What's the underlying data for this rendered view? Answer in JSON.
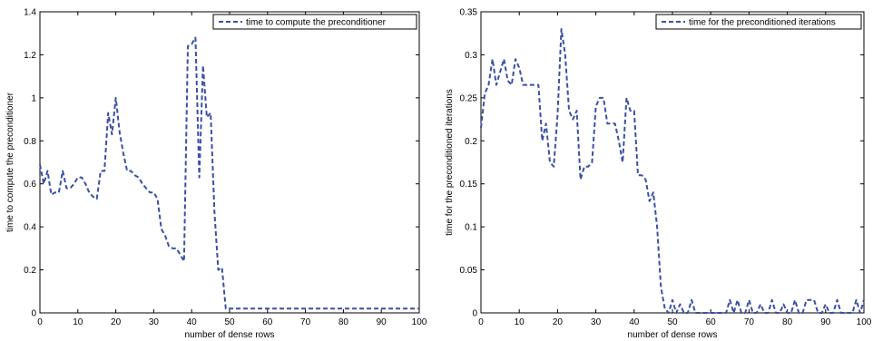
{
  "chart_data": [
    {
      "type": "line",
      "xlabel": "number of dense rows",
      "ylabel": "time to compute the preconditioner",
      "xlim": [
        0,
        100
      ],
      "ylim": [
        0,
        1.4
      ],
      "xticks": [
        "0",
        "10",
        "20",
        "30",
        "40",
        "50",
        "60",
        "70",
        "80",
        "90",
        "100"
      ],
      "yticks": [
        "0",
        "0.2",
        "0.4",
        "0.6",
        "0.8",
        "1",
        "1.2",
        "1.4"
      ],
      "grid": false,
      "legend_position": "top-right",
      "line_color": "#3a4fa6",
      "series": [
        {
          "name": "time to compute the preconditioner",
          "x": [
            0,
            1,
            2,
            3,
            4,
            5,
            6,
            7,
            8,
            9,
            10,
            11,
            12,
            13,
            14,
            15,
            16,
            17,
            18,
            19,
            20,
            21,
            22,
            23,
            24,
            25,
            26,
            27,
            28,
            29,
            30,
            31,
            32,
            33,
            34,
            35,
            36,
            37,
            38,
            39,
            40,
            41,
            42,
            43,
            44,
            45,
            46,
            47,
            48,
            49,
            50,
            51,
            52,
            53,
            54,
            55,
            56,
            57,
            58,
            59,
            60,
            61,
            62,
            63,
            64,
            65,
            66,
            67,
            68,
            69,
            70,
            71,
            72,
            73,
            74,
            75,
            76,
            77,
            78,
            79,
            80,
            81,
            82,
            83,
            84,
            85,
            86,
            87,
            88,
            89,
            90,
            91,
            92,
            93,
            94,
            95,
            96,
            97,
            98,
            99,
            100
          ],
          "values": [
            0.69,
            0.6,
            0.66,
            0.55,
            0.56,
            0.56,
            0.66,
            0.58,
            0.58,
            0.6,
            0.63,
            0.63,
            0.6,
            0.56,
            0.54,
            0.53,
            0.66,
            0.66,
            0.93,
            0.83,
            1.0,
            0.84,
            0.74,
            0.66,
            0.66,
            0.64,
            0.63,
            0.6,
            0.58,
            0.56,
            0.56,
            0.53,
            0.39,
            0.36,
            0.31,
            0.3,
            0.3,
            0.27,
            0.24,
            1.24,
            1.25,
            1.28,
            0.63,
            1.15,
            0.91,
            0.93,
            0.47,
            0.2,
            0.21,
            0.02,
            0.02,
            0.02,
            0.02,
            0.02,
            0.02,
            0.02,
            0.02,
            0.02,
            0.02,
            0.02,
            0.02,
            0.02,
            0.02,
            0.02,
            0.02,
            0.02,
            0.02,
            0.02,
            0.02,
            0.02,
            0.02,
            0.02,
            0.02,
            0.02,
            0.02,
            0.02,
            0.02,
            0.02,
            0.02,
            0.02,
            0.02,
            0.02,
            0.02,
            0.02,
            0.02,
            0.02,
            0.02,
            0.02,
            0.02,
            0.02,
            0.02,
            0.02,
            0.02,
            0.02,
            0.02,
            0.02,
            0.02,
            0.02,
            0.02,
            0.02,
            0.02
          ]
        }
      ]
    },
    {
      "type": "line",
      "xlabel": "number of dense rows",
      "ylabel": "time for the preconditioned iterations",
      "xlim": [
        0,
        100
      ],
      "ylim": [
        0,
        0.35
      ],
      "xticks": [
        "0",
        "10",
        "20",
        "30",
        "40",
        "50",
        "60",
        "70",
        "80",
        "90",
        "100"
      ],
      "yticks": [
        "0",
        "0.05",
        "0.1",
        "0.15",
        "0.2",
        "0.25",
        "0.3",
        "0.35"
      ],
      "grid": false,
      "legend_position": "top-right",
      "line_color": "#3a4fa6",
      "series": [
        {
          "name": "time for the preconditioned iterations",
          "x": [
            0,
            1,
            2,
            3,
            4,
            5,
            6,
            7,
            8,
            9,
            10,
            11,
            12,
            13,
            14,
            15,
            16,
            17,
            18,
            19,
            20,
            21,
            22,
            23,
            24,
            25,
            26,
            27,
            28,
            29,
            30,
            31,
            32,
            33,
            34,
            35,
            36,
            37,
            38,
            39,
            40,
            41,
            42,
            43,
            44,
            45,
            46,
            47,
            48,
            49,
            50,
            51,
            52,
            53,
            54,
            55,
            56,
            57,
            58,
            59,
            60,
            61,
            62,
            63,
            64,
            65,
            66,
            67,
            68,
            69,
            70,
            71,
            72,
            73,
            74,
            75,
            76,
            77,
            78,
            79,
            80,
            81,
            82,
            83,
            84,
            85,
            86,
            87,
            88,
            89,
            90,
            91,
            92,
            93,
            94,
            95,
            96,
            97,
            98,
            99,
            100
          ],
          "values": [
            0.215,
            0.255,
            0.265,
            0.295,
            0.265,
            0.28,
            0.295,
            0.27,
            0.265,
            0.295,
            0.285,
            0.265,
            0.265,
            0.265,
            0.265,
            0.265,
            0.2,
            0.22,
            0.175,
            0.17,
            0.23,
            0.33,
            0.3,
            0.235,
            0.225,
            0.235,
            0.155,
            0.17,
            0.17,
            0.175,
            0.24,
            0.25,
            0.25,
            0.22,
            0.22,
            0.22,
            0.2,
            0.175,
            0.25,
            0.235,
            0.235,
            0.16,
            0.16,
            0.155,
            0.13,
            0.14,
            0.1,
            0.03,
            0.005,
            0.0,
            0.015,
            0.0,
            0.01,
            0.0,
            0.0,
            0.015,
            0.0,
            0.0,
            0.0,
            0.0,
            0.0,
            0.0,
            0.0,
            0.0,
            0.0,
            0.015,
            0.0,
            0.015,
            0.0,
            0.0,
            0.015,
            0.0,
            0.0,
            0.01,
            0.0,
            0.0,
            0.015,
            0.0,
            0.0,
            0.01,
            0.0,
            0.0,
            0.015,
            0.0,
            0.0,
            0.015,
            0.015,
            0.015,
            0.0,
            0.0,
            0.01,
            0.0,
            0.0,
            0.015,
            0.0,
            0.0,
            0.0,
            0.0,
            0.015,
            0.0,
            0.015
          ]
        }
      ]
    }
  ]
}
